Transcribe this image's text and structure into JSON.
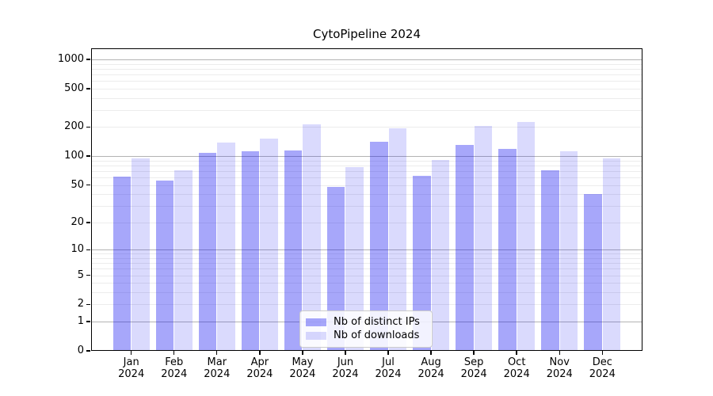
{
  "chart_data": {
    "type": "bar",
    "title": "CytoPipeline 2024",
    "xlabel": "",
    "ylabel": "",
    "scale": "log1p",
    "ylim": [
      0,
      1300
    ],
    "grid": "both",
    "legend_position": "inside-bottom-center",
    "categories": [
      "Jan",
      "Feb",
      "Mar",
      "Apr",
      "May",
      "Jun",
      "Jul",
      "Aug",
      "Sep",
      "Oct",
      "Nov",
      "Dec"
    ],
    "category_year": "2024",
    "yticks": [
      0,
      1,
      2,
      5,
      10,
      20,
      50,
      100,
      200,
      500,
      1000
    ],
    "series": [
      {
        "key": "ips",
        "name": "Nb of distinct IPs",
        "color": "#0a0af05c",
        "values": [
          61,
          56,
          108,
          113,
          115,
          48,
          140,
          62,
          130,
          119,
          71,
          40
        ]
      },
      {
        "key": "downloads",
        "name": "Nb of downloads",
        "color": "#0a0af026",
        "values": [
          95,
          71,
          139,
          152,
          214,
          77,
          194,
          91,
          206,
          228,
          112,
          95
        ]
      }
    ]
  }
}
